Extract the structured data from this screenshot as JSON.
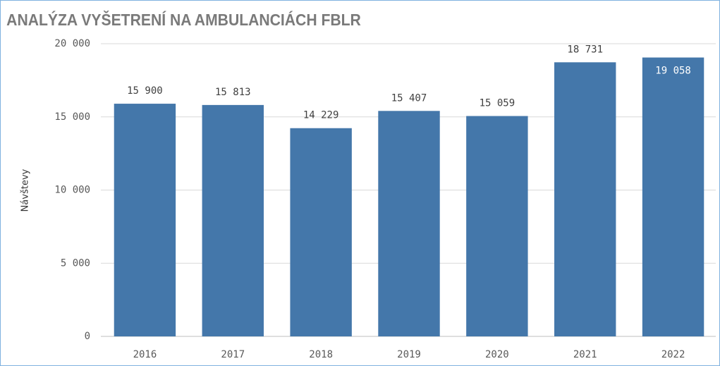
{
  "chart_data": {
    "type": "bar",
    "title": "ANALÝZA VYŠETRENÍ NA AMBULANCIÁCH FBLR",
    "y_label": "Návštevy",
    "categories": [
      "2016",
      "2017",
      "2018",
      "2019",
      "2020",
      "2021",
      "2022"
    ],
    "values": [
      15900,
      15813,
      14229,
      15407,
      15059,
      18731,
      19058
    ],
    "value_labels": [
      "15 900",
      "15 813",
      "14 229",
      "15 407",
      "15 059",
      "18 731",
      "19 058"
    ],
    "color": "#4477aa",
    "ylim": [
      0,
      20000
    ],
    "yticks": [
      0,
      {
        "value": 5000,
        "label": "5 000"
      },
      {
        "value": 10000,
        "label": "10 000"
      },
      {
        "value": 15000,
        "label": "15 000"
      },
      {
        "value": 20000,
        "label": "20 000"
      }
    ],
    "grid": true
  }
}
